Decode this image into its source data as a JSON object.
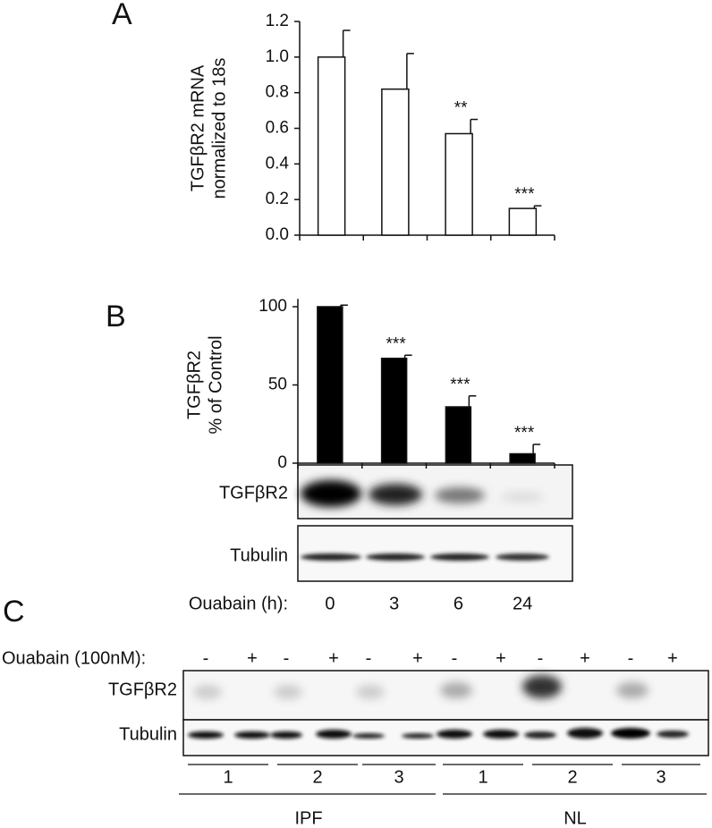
{
  "panel_labels": [
    "A",
    "B",
    "C"
  ],
  "chart_data": [
    {
      "type": "bar",
      "ylabel": [
        "TGFβR2  mRNA",
        "normalized to 18s"
      ],
      "categories": [
        null,
        null,
        null,
        null
      ],
      "values": [
        1.0,
        0.82,
        0.57,
        0.15
      ],
      "errors": [
        0.15,
        0.2,
        0.08,
        0.015
      ],
      "annotations": [
        null,
        null,
        "**",
        "***"
      ],
      "color": "#ffffff",
      "ylim": [
        0,
        1.2
      ],
      "yticks": [
        {
          "value": 0,
          "label": "0.0"
        },
        0.2,
        0.4,
        0.6,
        0.8,
        {
          "value": 1,
          "label": "1.0"
        },
        1.2
      ]
    },
    {
      "type": "bar",
      "ylabel": [
        "TGFβR2",
        "% of Control"
      ],
      "xlabel": "Ouabain (h):",
      "categories": [
        "0",
        "3",
        "6",
        "24"
      ],
      "values": [
        100,
        67,
        36,
        6
      ],
      "errors": [
        1,
        2,
        7,
        6
      ],
      "annotations": [
        null,
        "***",
        "***",
        "***"
      ],
      "color": "#000000",
      "ylim": [
        0,
        105
      ],
      "yticks": [
        0,
        50,
        100
      ]
    }
  ],
  "panel_b_blots": [
    "TGFβR2",
    "Tubulin"
  ],
  "panel_c": {
    "treatment_label": "Ouabain (100nM):",
    "signs": [
      "-",
      "+",
      "-",
      "+",
      "-",
      "+",
      "-",
      "+",
      "-",
      "+",
      "-",
      "+"
    ],
    "blots": [
      "TGFβR2",
      "Tubulin"
    ],
    "replicates": [
      "1",
      "2",
      "3",
      "1",
      "2",
      "3"
    ],
    "groups": [
      "IPF",
      "NL"
    ]
  }
}
